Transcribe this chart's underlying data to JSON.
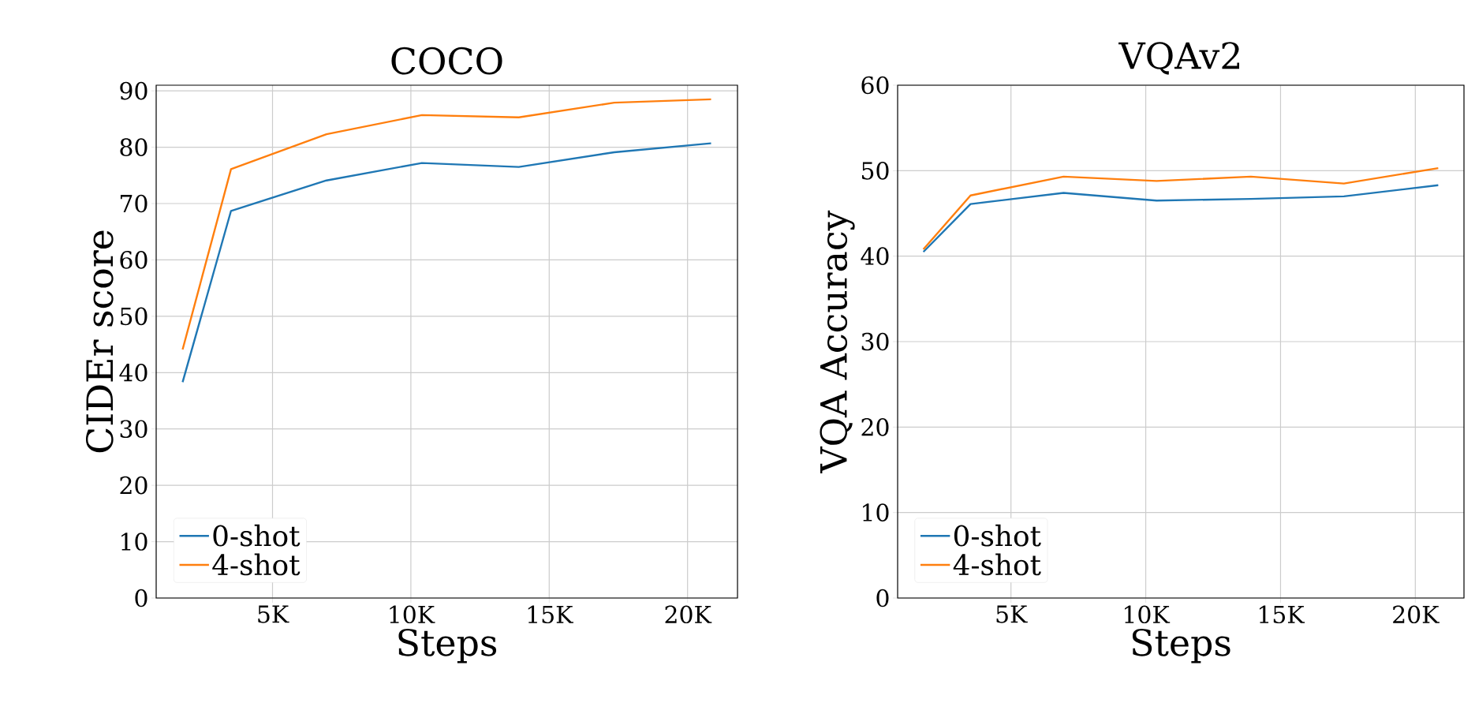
{
  "chart_data": [
    {
      "type": "line",
      "title": "COCO",
      "xlabel": "Steps",
      "ylabel": "CIDEr score",
      "x": [
        1750,
        3500,
        6950,
        10400,
        13900,
        17350,
        20850
      ],
      "series": [
        {
          "name": "0-shot",
          "color": "#1f77b4",
          "values": [
            38.3,
            68.7,
            74.1,
            77.2,
            76.5,
            79.1,
            80.7
          ]
        },
        {
          "name": "4-shot",
          "color": "#ff7f0e",
          "values": [
            44.1,
            76.1,
            82.3,
            85.7,
            85.3,
            87.9,
            88.5
          ]
        }
      ],
      "xlim": [
        795,
        21805
      ],
      "ylim": [
        0,
        91
      ],
      "xticks": [
        {
          "value": 5000,
          "label": "5K"
        },
        {
          "value": 10000,
          "label": "10K"
        },
        {
          "value": 15000,
          "label": "15K"
        },
        {
          "value": 20000,
          "label": "20K"
        }
      ],
      "yticks": [
        0,
        10,
        20,
        30,
        40,
        50,
        60,
        70,
        80,
        90
      ],
      "grid": true,
      "legend": "bottom left",
      "line_style": "solid"
    },
    {
      "type": "line",
      "title": "VQAv2",
      "xlabel": "Steps",
      "ylabel": "VQA Accuracy",
      "x": [
        1750,
        3500,
        6950,
        10400,
        13900,
        17350,
        20850
      ],
      "series": [
        {
          "name": "0-shot",
          "color": "#1f77b4",
          "values": [
            40.5,
            46.1,
            47.4,
            46.5,
            46.7,
            47.0,
            48.3
          ]
        },
        {
          "name": "4-shot",
          "color": "#ff7f0e",
          "values": [
            40.8,
            47.1,
            49.3,
            48.8,
            49.3,
            48.5,
            50.3
          ]
        }
      ],
      "xlim": [
        795,
        21805
      ],
      "ylim": [
        0,
        60
      ],
      "xticks": [
        {
          "value": 5000,
          "label": "5K"
        },
        {
          "value": 10000,
          "label": "10K"
        },
        {
          "value": 15000,
          "label": "15K"
        },
        {
          "value": 20000,
          "label": "20K"
        }
      ],
      "yticks": [
        0,
        10,
        20,
        30,
        40,
        50,
        60
      ],
      "grid": true,
      "legend": "bottom left",
      "line_style": "solid"
    }
  ]
}
